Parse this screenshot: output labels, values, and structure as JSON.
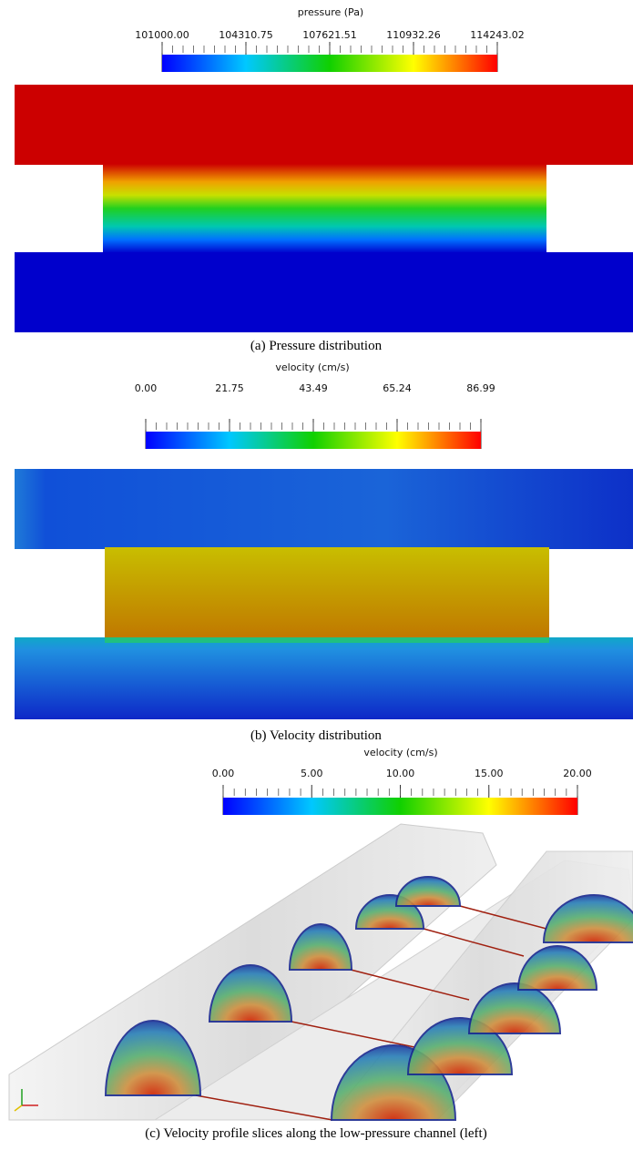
{
  "panels": [
    {
      "colorbar": {
        "title": "pressure (Pa)",
        "ticks": [
          "101000.00",
          "104310.75",
          "107621.51",
          "110932.26",
          "114243.02"
        ]
      },
      "caption": "(a) Pressure distribution"
    },
    {
      "colorbar": {
        "title": "velocity (cm/s)",
        "ticks": [
          "0.00",
          "21.75",
          "43.49",
          "65.24",
          "86.99"
        ]
      },
      "caption": "(b) Velocity distribution"
    },
    {
      "colorbar": {
        "title": "velocity (cm/s)",
        "ticks": [
          "0.00",
          "5.00",
          "10.00",
          "15.00",
          "20.00"
        ]
      },
      "caption": "(c) Velocity profile slices along the low-pressure channel (left)"
    }
  ]
}
